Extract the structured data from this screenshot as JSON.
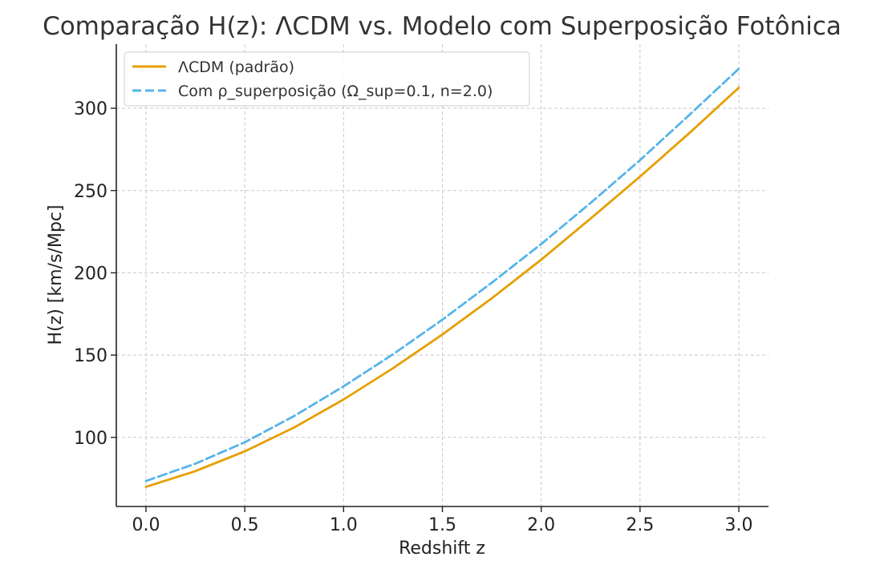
{
  "chart_data": {
    "type": "line",
    "title": "Comparação H(z): ΛCDM vs. Modelo com Superposição Fotônica",
    "xlabel": "Redshift z",
    "ylabel": "H(z) [km/s/Mpc]",
    "xlim": [
      -0.15,
      3.15
    ],
    "ylim": [
      58,
      339
    ],
    "xticks": [
      0.0,
      0.5,
      1.0,
      1.5,
      2.0,
      2.5,
      3.0
    ],
    "xtick_labels": [
      "0.0",
      "0.5",
      "1.0",
      "1.5",
      "2.0",
      "2.5",
      "3.0"
    ],
    "yticks": [
      100,
      150,
      200,
      250,
      300
    ],
    "ytick_labels": [
      "100",
      "150",
      "200",
      "250",
      "300"
    ],
    "grid": true,
    "legend_position": "upper-left",
    "x": [
      0.0,
      0.25,
      0.5,
      0.75,
      1.0,
      1.25,
      1.5,
      1.75,
      2.0,
      2.25,
      2.5,
      2.75,
      3.0
    ],
    "series": [
      {
        "name": "ΛCDM (padrão)",
        "color": "#E69F00",
        "style": "solid",
        "values": [
          70.0,
          79.5,
          91.5,
          106.0,
          123.0,
          142.0,
          162.5,
          184.5,
          208.0,
          233.0,
          258.5,
          285.0,
          312.5
        ]
      },
      {
        "name": "Com ρ_superposição (Ω_sup=0.1, n=2.0)",
        "color": "#56B4E9",
        "style": "dashed",
        "values": [
          73.5,
          84.0,
          97.0,
          113.0,
          131.0,
          150.5,
          171.5,
          194.0,
          217.5,
          242.5,
          268.5,
          296.0,
          324.0
        ]
      }
    ]
  }
}
